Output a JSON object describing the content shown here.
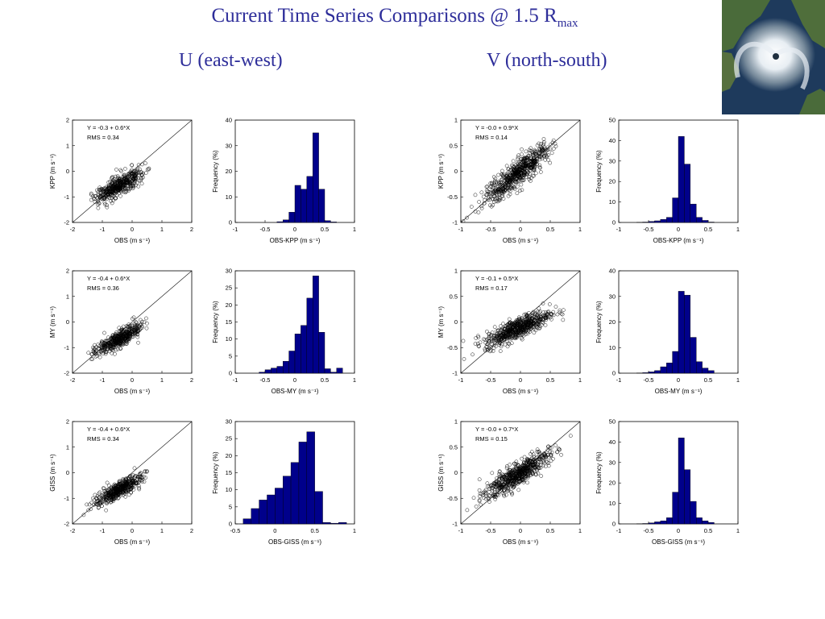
{
  "header": {
    "title_main": "Current Time Series Comparisons @ 1.5 R",
    "title_sub": "max",
    "col_u": "U (east-west)",
    "col_v": "V (north-south)"
  },
  "colors": {
    "title": "#2e2e9a",
    "bar": "#00008b",
    "marker": "#000000"
  },
  "chart_data": [
    {
      "type": "scatter",
      "component": "U",
      "model": "KPP",
      "xlabel": "OBS (m s⁻¹)",
      "ylabel": "KPP (m s⁻¹)",
      "xlim": [
        -2,
        2
      ],
      "ylim": [
        -2,
        2
      ],
      "xticks": [
        -2,
        -1,
        0,
        1,
        2
      ],
      "yticks": [
        -2,
        -1,
        0,
        1,
        2
      ],
      "fit": {
        "intercept": -0.3,
        "slope": 0.6
      },
      "rms": 0.34,
      "annotation": [
        "Y =  -0.3 +   0.6*X",
        "RMS =  0.34"
      ],
      "one_to_one_line": true,
      "cloud": {
        "x_mean": -0.45,
        "x_std": 0.38,
        "y_std": 0.18,
        "n": 450
      },
      "y_flat": [],
      "y_fit": []
    },
    {
      "type": "bar",
      "component": "U",
      "model": "KPP",
      "xlabel": "OBS-KPP (m s⁻¹)",
      "ylabel": "Frequency (%)",
      "xlim": [
        -1,
        1
      ],
      "ylim": [
        0,
        40
      ],
      "xticks": [
        -1,
        -0.5,
        0,
        0.5,
        1
      ],
      "yticks": [
        0,
        10,
        20,
        30,
        40
      ],
      "bin_edges": [
        -0.3,
        -0.2,
        -0.1,
        0,
        0.1,
        0.2,
        0.3,
        0.4,
        0.5,
        0.6,
        0.7
      ],
      "values": [
        0.3,
        1,
        4,
        14.5,
        13,
        18,
        35,
        13,
        0.7,
        0.2
      ]
    },
    {
      "type": "scatter",
      "component": "V",
      "model": "KPP",
      "xlabel": "OBS (m s⁻¹)",
      "ylabel": "KPP (m s⁻¹)",
      "xlim": [
        -1,
        1
      ],
      "ylim": [
        -1,
        1
      ],
      "xticks": [
        -1,
        -0.5,
        0,
        0.5,
        1
      ],
      "yticks": [
        -1,
        -0.5,
        0,
        0.5,
        1
      ],
      "fit": {
        "intercept": -0.0,
        "slope": 0.9
      },
      "rms": 0.14,
      "annotation": [
        "Y =  -0.0 +   0.9*X",
        "RMS =  0.14"
      ],
      "one_to_one_line": true,
      "cloud": {
        "x_mean": -0.05,
        "x_std": 0.27,
        "y_std": 0.13,
        "n": 600
      },
      "y_flat": [],
      "y_fit": []
    },
    {
      "type": "bar",
      "component": "V",
      "model": "KPP",
      "xlabel": "OBS-KPP (m s⁻¹)",
      "ylabel": "Frequency (%)",
      "xlim": [
        -1,
        1
      ],
      "ylim": [
        0,
        50
      ],
      "xticks": [
        -1,
        -0.5,
        0,
        0.5,
        1
      ],
      "yticks": [
        0,
        10,
        20,
        30,
        40,
        50
      ],
      "bin_edges": [
        -0.7,
        -0.6,
        -0.5,
        -0.4,
        -0.3,
        -0.2,
        -0.1,
        0,
        0.1,
        0.2,
        0.3,
        0.4,
        0.5,
        0.6
      ],
      "values": [
        0.1,
        0.2,
        0.5,
        0.8,
        1.5,
        2.5,
        12,
        42,
        28.5,
        9,
        2.5,
        1,
        0.2
      ]
    },
    {
      "type": "scatter",
      "component": "U",
      "model": "MY",
      "xlabel": "OBS (m s⁻¹)",
      "ylabel": "MY (m s⁻¹)",
      "xlim": [
        -2,
        2
      ],
      "ylim": [
        -2,
        2
      ],
      "xticks": [
        -2,
        -1,
        0,
        1,
        2
      ],
      "yticks": [
        -2,
        -1,
        0,
        1,
        2
      ],
      "fit": {
        "intercept": -0.4,
        "slope": 0.6
      },
      "rms": 0.36,
      "annotation": [
        "Y =  -0.4 +   0.6*X",
        "RMS =  0.36"
      ],
      "one_to_one_line": true,
      "cloud": {
        "x_mean": -0.45,
        "x_std": 0.38,
        "y_std": 0.16,
        "n": 450
      },
      "y_flat": [],
      "y_fit": []
    },
    {
      "type": "bar",
      "component": "U",
      "model": "MY",
      "xlabel": "OBS-MY (m s⁻¹)",
      "ylabel": "Frequency (%)",
      "xlim": [
        -1,
        1
      ],
      "ylim": [
        0,
        30
      ],
      "xticks": [
        -1,
        -0.5,
        0,
        0.5,
        1
      ],
      "yticks": [
        0,
        5,
        10,
        15,
        20,
        25,
        30
      ],
      "bin_edges": [
        -0.6,
        -0.5,
        -0.4,
        -0.3,
        -0.2,
        -0.1,
        0,
        0.1,
        0.2,
        0.3,
        0.4,
        0.5,
        0.6,
        0.7,
        0.8
      ],
      "values": [
        0.3,
        1,
        1.5,
        2,
        3.5,
        6.5,
        11.5,
        14,
        22,
        28.5,
        12,
        1.3,
        0.3,
        1.5
      ]
    },
    {
      "type": "scatter",
      "component": "V",
      "model": "MY",
      "xlabel": "OBS (m s⁻¹)",
      "ylabel": "MY (m s⁻¹)",
      "xlim": [
        -1,
        1
      ],
      "ylim": [
        -1,
        1
      ],
      "xticks": [
        -1,
        -0.5,
        0,
        0.5,
        1
      ],
      "yticks": [
        -1,
        -0.5,
        0,
        0.5,
        1
      ],
      "fit": {
        "intercept": -0.1,
        "slope": 0.5
      },
      "rms": 0.17,
      "annotation": [
        "Y =  -0.1 +   0.5*X",
        "RMS =  0.17"
      ],
      "one_to_one_line": true,
      "cloud": {
        "x_mean": -0.05,
        "x_std": 0.27,
        "y_std": 0.1,
        "n": 600
      },
      "y_flat": [],
      "y_fit": []
    },
    {
      "type": "bar",
      "component": "V",
      "model": "MY",
      "xlabel": "OBS-MY (m s⁻¹)",
      "ylabel": "Frequency (%)",
      "xlim": [
        -1,
        1
      ],
      "ylim": [
        0,
        40
      ],
      "xticks": [
        -1,
        -0.5,
        0,
        0.5,
        1
      ],
      "yticks": [
        0,
        10,
        20,
        30,
        40
      ],
      "bin_edges": [
        -0.7,
        -0.6,
        -0.5,
        -0.4,
        -0.3,
        -0.2,
        -0.1,
        0,
        0.1,
        0.2,
        0.3,
        0.4,
        0.5,
        0.6
      ],
      "values": [
        0.1,
        0.2,
        0.5,
        1,
        2.5,
        4,
        8.5,
        32,
        30.5,
        14,
        4.5,
        2,
        1
      ]
    },
    {
      "type": "scatter",
      "component": "U",
      "model": "GISS",
      "xlabel": "OBS (m s⁻¹)",
      "ylabel": "GISS (m s⁻¹)",
      "xlim": [
        -2,
        2
      ],
      "ylim": [
        -2,
        2
      ],
      "xticks": [
        -2,
        -1,
        0,
        1,
        2
      ],
      "yticks": [
        -2,
        -1,
        0,
        1,
        2
      ],
      "fit": {
        "intercept": -0.4,
        "slope": 0.6
      },
      "rms": 0.34,
      "annotation": [
        "Y =  -0.4 +   0.6*X",
        "RMS =  0.34"
      ],
      "one_to_one_line": true,
      "cloud": {
        "x_mean": -0.45,
        "x_std": 0.38,
        "y_std": 0.16,
        "n": 450
      },
      "y_flat": [],
      "y_fit": []
    },
    {
      "type": "bar",
      "component": "U",
      "model": "GISS",
      "xlabel": "OBS-GISS (m s⁻¹)",
      "ylabel": "Frequency (%)",
      "xlim": [
        -0.5,
        1
      ],
      "ylim": [
        0,
        30
      ],
      "xticks": [
        -0.5,
        0,
        0.5,
        1
      ],
      "yticks": [
        0,
        5,
        10,
        15,
        20,
        25,
        30
      ],
      "bin_edges": [
        -0.4,
        -0.3,
        -0.2,
        -0.1,
        0,
        0.1,
        0.2,
        0.3,
        0.4,
        0.5,
        0.6,
        0.7,
        0.8,
        0.9
      ],
      "values": [
        1.5,
        4.5,
        7,
        8.5,
        10.5,
        14,
        18,
        24,
        27,
        9.5,
        0.4,
        0.2,
        0.4
      ]
    },
    {
      "type": "scatter",
      "component": "V",
      "model": "GISS",
      "xlabel": "OBS (m s⁻¹)",
      "ylabel": "GISS (m s⁻¹)",
      "xlim": [
        -1,
        1
      ],
      "ylim": [
        -1,
        1
      ],
      "xticks": [
        -1,
        -0.5,
        0,
        0.5,
        1
      ],
      "yticks": [
        -1,
        -0.5,
        0,
        0.5,
        1
      ],
      "fit": {
        "intercept": -0.0,
        "slope": 0.7
      },
      "rms": 0.15,
      "annotation": [
        "Y =  -0.0 +   0.7*X",
        "RMS =  0.15"
      ],
      "one_to_one_line": true,
      "cloud": {
        "x_mean": -0.05,
        "x_std": 0.27,
        "y_std": 0.11,
        "n": 600
      },
      "y_flat": [],
      "y_fit": []
    },
    {
      "type": "bar",
      "component": "V",
      "model": "GISS",
      "xlabel": "OBS-GISS (m s⁻¹)",
      "ylabel": "Frequency (%)",
      "xlim": [
        -1,
        1
      ],
      "ylim": [
        0,
        50
      ],
      "xticks": [
        -1,
        -0.5,
        0,
        0.5,
        1
      ],
      "yticks": [
        0,
        10,
        20,
        30,
        40,
        50
      ],
      "bin_edges": [
        -0.7,
        -0.6,
        -0.5,
        -0.4,
        -0.3,
        -0.2,
        -0.1,
        0,
        0.1,
        0.2,
        0.3,
        0.4,
        0.5,
        0.6
      ],
      "values": [
        0.1,
        0.2,
        0.5,
        1,
        1.5,
        3,
        15.5,
        42,
        26.5,
        11,
        3,
        1.5,
        0.7
      ]
    }
  ]
}
